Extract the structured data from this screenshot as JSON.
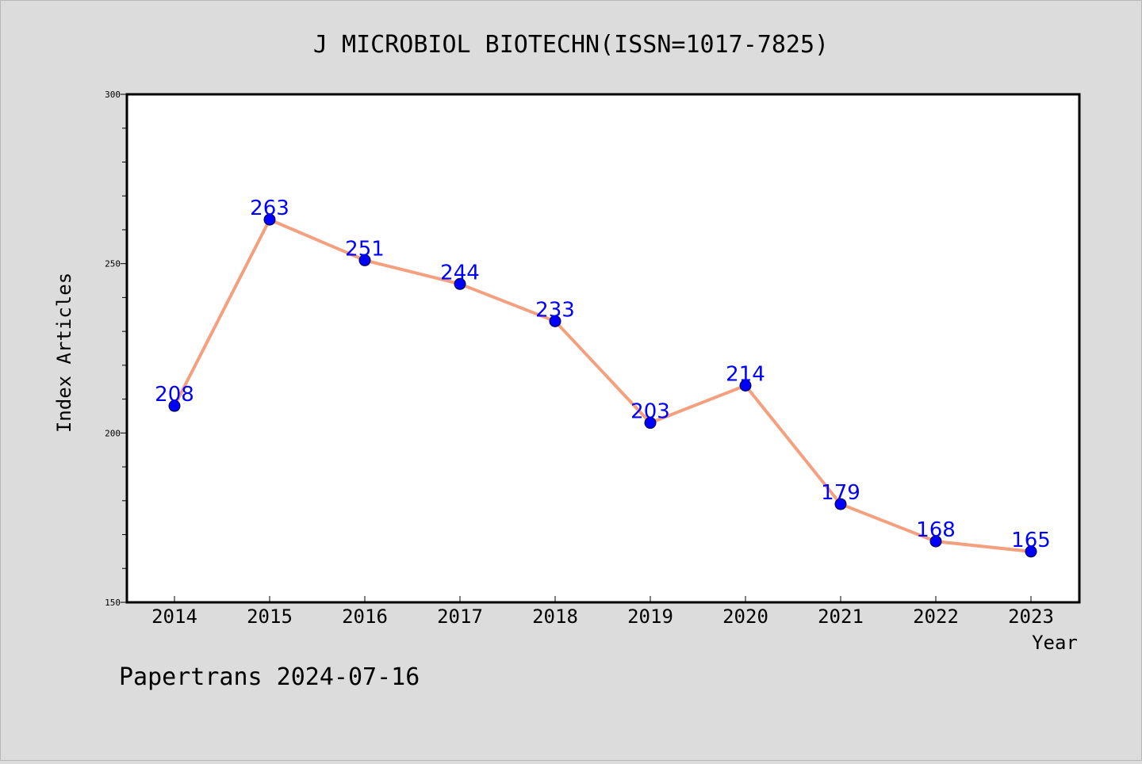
{
  "chart_data": {
    "type": "line",
    "title": "J MICROBIOL BIOTECHN(ISSN=1017-7825)",
    "xlabel": "Year",
    "ylabel": "Index Articles",
    "x": [
      "2014",
      "2015",
      "2016",
      "2017",
      "2018",
      "2019",
      "2020",
      "2021",
      "2022",
      "2023"
    ],
    "series": [
      {
        "values": [
          208,
          263,
          251,
          244,
          233,
          203,
          214,
          179,
          168,
          165
        ]
      }
    ],
    "data_labels": [
      "208",
      "263",
      "251",
      "244",
      "233",
      "203",
      "214",
      "179",
      "168",
      "165"
    ],
    "ylim": [
      150,
      300
    ],
    "yticks": [
      "150",
      "200",
      "250",
      "300"
    ],
    "grid": false,
    "legend": "none"
  },
  "footer": "Papertrans 2024-07-16",
  "colors": {
    "background": "#dcdcdc",
    "plot_background": "#ffffff",
    "line": "#f4a07f",
    "marker": "#0000ff",
    "data_label": "#0000ff"
  }
}
